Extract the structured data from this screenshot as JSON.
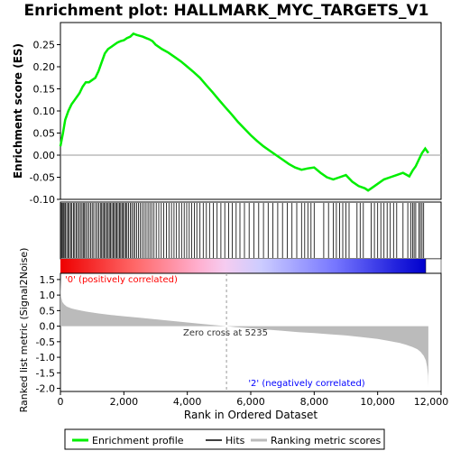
{
  "chart_data": [
    {
      "type": "line",
      "title": "Enrichment plot: HALLMARK_MYC_TARGETS_V1",
      "ylabel": "Enrichment score (ES)",
      "ylim": [
        -0.1,
        0.3
      ],
      "yticks": [
        "-0.10",
        "-0.05",
        "0.00",
        "0.05",
        "0.10",
        "0.15",
        "0.20",
        "0.25"
      ],
      "series": [
        {
          "name": "Enrichment profile",
          "color": "#00ee00",
          "x": [
            0,
            80,
            150,
            250,
            350,
            450,
            600,
            700,
            800,
            900,
            1000,
            1100,
            1200,
            1300,
            1400,
            1500,
            1600,
            1700,
            1800,
            1900,
            2000,
            2100,
            2200,
            2300,
            2400,
            2500,
            2600,
            2700,
            2800,
            2900,
            3000,
            3200,
            3400,
            3600,
            3800,
            4000,
            4200,
            4400,
            4600,
            4800,
            5000,
            5200,
            5400,
            5600,
            5800,
            6000,
            6200,
            6400,
            6600,
            6800,
            7000,
            7200,
            7400,
            7600,
            7800,
            8000,
            8200,
            8400,
            8600,
            8800,
            9000,
            9200,
            9400,
            9600,
            9700,
            9800,
            10000,
            10200,
            10400,
            10600,
            10800,
            11000,
            11100,
            11200,
            11300,
            11400,
            11500,
            11600
          ],
          "y": [
            0.02,
            0.05,
            0.08,
            0.1,
            0.115,
            0.125,
            0.14,
            0.155,
            0.165,
            0.165,
            0.17,
            0.175,
            0.19,
            0.21,
            0.23,
            0.24,
            0.245,
            0.25,
            0.255,
            0.258,
            0.26,
            0.265,
            0.268,
            0.275,
            0.272,
            0.27,
            0.268,
            0.265,
            0.262,
            0.258,
            0.25,
            0.24,
            0.232,
            0.222,
            0.212,
            0.2,
            0.188,
            0.175,
            0.158,
            0.142,
            0.125,
            0.108,
            0.092,
            0.075,
            0.06,
            0.045,
            0.032,
            0.02,
            0.01,
            0.0,
            -0.01,
            -0.02,
            -0.028,
            -0.033,
            -0.03,
            -0.028,
            -0.04,
            -0.05,
            -0.055,
            -0.05,
            -0.045,
            -0.06,
            -0.07,
            -0.075,
            -0.08,
            -0.075,
            -0.065,
            -0.055,
            -0.05,
            -0.045,
            -0.04,
            -0.048,
            -0.035,
            -0.025,
            -0.01,
            0.005,
            0.015,
            0.005
          ]
        }
      ],
      "hits_rank": [
        30,
        60,
        90,
        120,
        160,
        200,
        240,
        280,
        320,
        360,
        410,
        450,
        500,
        540,
        590,
        630,
        680,
        720,
        760,
        800,
        850,
        900,
        950,
        1000,
        1050,
        1110,
        1160,
        1210,
        1260,
        1300,
        1340,
        1380,
        1420,
        1460,
        1500,
        1540,
        1580,
        1620,
        1660,
        1700,
        1740,
        1780,
        1820,
        1860,
        1900,
        1940,
        1980,
        2020,
        2060,
        2100,
        2150,
        2200,
        2250,
        2300,
        2350,
        2400,
        2460,
        2520,
        2580,
        2640,
        2700,
        2760,
        2820,
        2880,
        2950,
        3020,
        3100,
        3180,
        3260,
        3340,
        3420,
        3500,
        3580,
        3660,
        3740,
        3820,
        3900,
        3980,
        4060,
        4140,
        4220,
        4300,
        4400,
        4500,
        4600,
        4700,
        4820,
        4940,
        5060,
        5180,
        5300,
        5420,
        5540,
        5660,
        5800,
        5950,
        6100,
        6250,
        6400,
        6550,
        6700,
        6850,
        7000,
        7150,
        7300,
        7450,
        7600,
        7700,
        7800,
        7900,
        8000,
        8300,
        8450,
        8600,
        8700,
        8800,
        8900,
        9000,
        9100,
        9350,
        9450,
        9550,
        9800,
        9900,
        10000,
        10100,
        10200,
        10300,
        10400,
        10500,
        10600,
        10800,
        10950,
        11050,
        11100,
        11150,
        11200,
        11300,
        11350,
        11400,
        11450
      ]
    },
    {
      "type": "area",
      "ylabel": "Ranked list metric (Signal2Noise)",
      "xlabel": "Rank in Ordered Dataset",
      "xlim": [
        0,
        12000
      ],
      "ylim": [
        -2.1,
        1.7
      ],
      "xticks": [
        "0",
        "2,000",
        "4,000",
        "6,000",
        "8,000",
        "10,000",
        "12,000"
      ],
      "yticks": [
        "-2.0",
        "-1.5",
        "-1.0",
        "-0.5",
        "0.0",
        "0.5",
        "1.0",
        "1.5"
      ],
      "series": [
        {
          "name": "Ranking metric scores",
          "color": "#bbbbbb",
          "x": [
            0,
            20,
            60,
            120,
            200,
            350,
            500,
            800,
            1200,
            1600,
            2000,
            2500,
            3000,
            3500,
            4000,
            4500,
            5000,
            5235,
            5500,
            6000,
            6500,
            7000,
            7500,
            8000,
            8500,
            9000,
            9500,
            10000,
            10400,
            10700,
            10900,
            11100,
            11250,
            11350,
            11450,
            11520,
            11560,
            11590,
            11600
          ],
          "y": [
            1.55,
            0.95,
            0.78,
            0.7,
            0.63,
            0.57,
            0.53,
            0.47,
            0.41,
            0.36,
            0.32,
            0.27,
            0.22,
            0.17,
            0.12,
            0.07,
            0.02,
            0.0,
            -0.03,
            -0.07,
            -0.11,
            -0.15,
            -0.19,
            -0.22,
            -0.26,
            -0.3,
            -0.35,
            -0.41,
            -0.48,
            -0.54,
            -0.6,
            -0.67,
            -0.74,
            -0.82,
            -0.95,
            -1.1,
            -1.3,
            -1.6,
            -1.95
          ]
        }
      ],
      "zero_cross_label": "Zero cross at 5235",
      "zero_cross": 5235,
      "pos_label": "'0' (positively correlated)",
      "neg_label": "'2' (negatively correlated)",
      "pos_color": "#ff0000",
      "neg_color": "#0000ff"
    }
  ],
  "legend": {
    "items": [
      {
        "label": "Enrichment profile",
        "color": "#00ee00"
      },
      {
        "label": "Hits",
        "color": "#000000"
      },
      {
        "label": "Ranking metric scores",
        "color": "#bbbbbb"
      }
    ]
  }
}
